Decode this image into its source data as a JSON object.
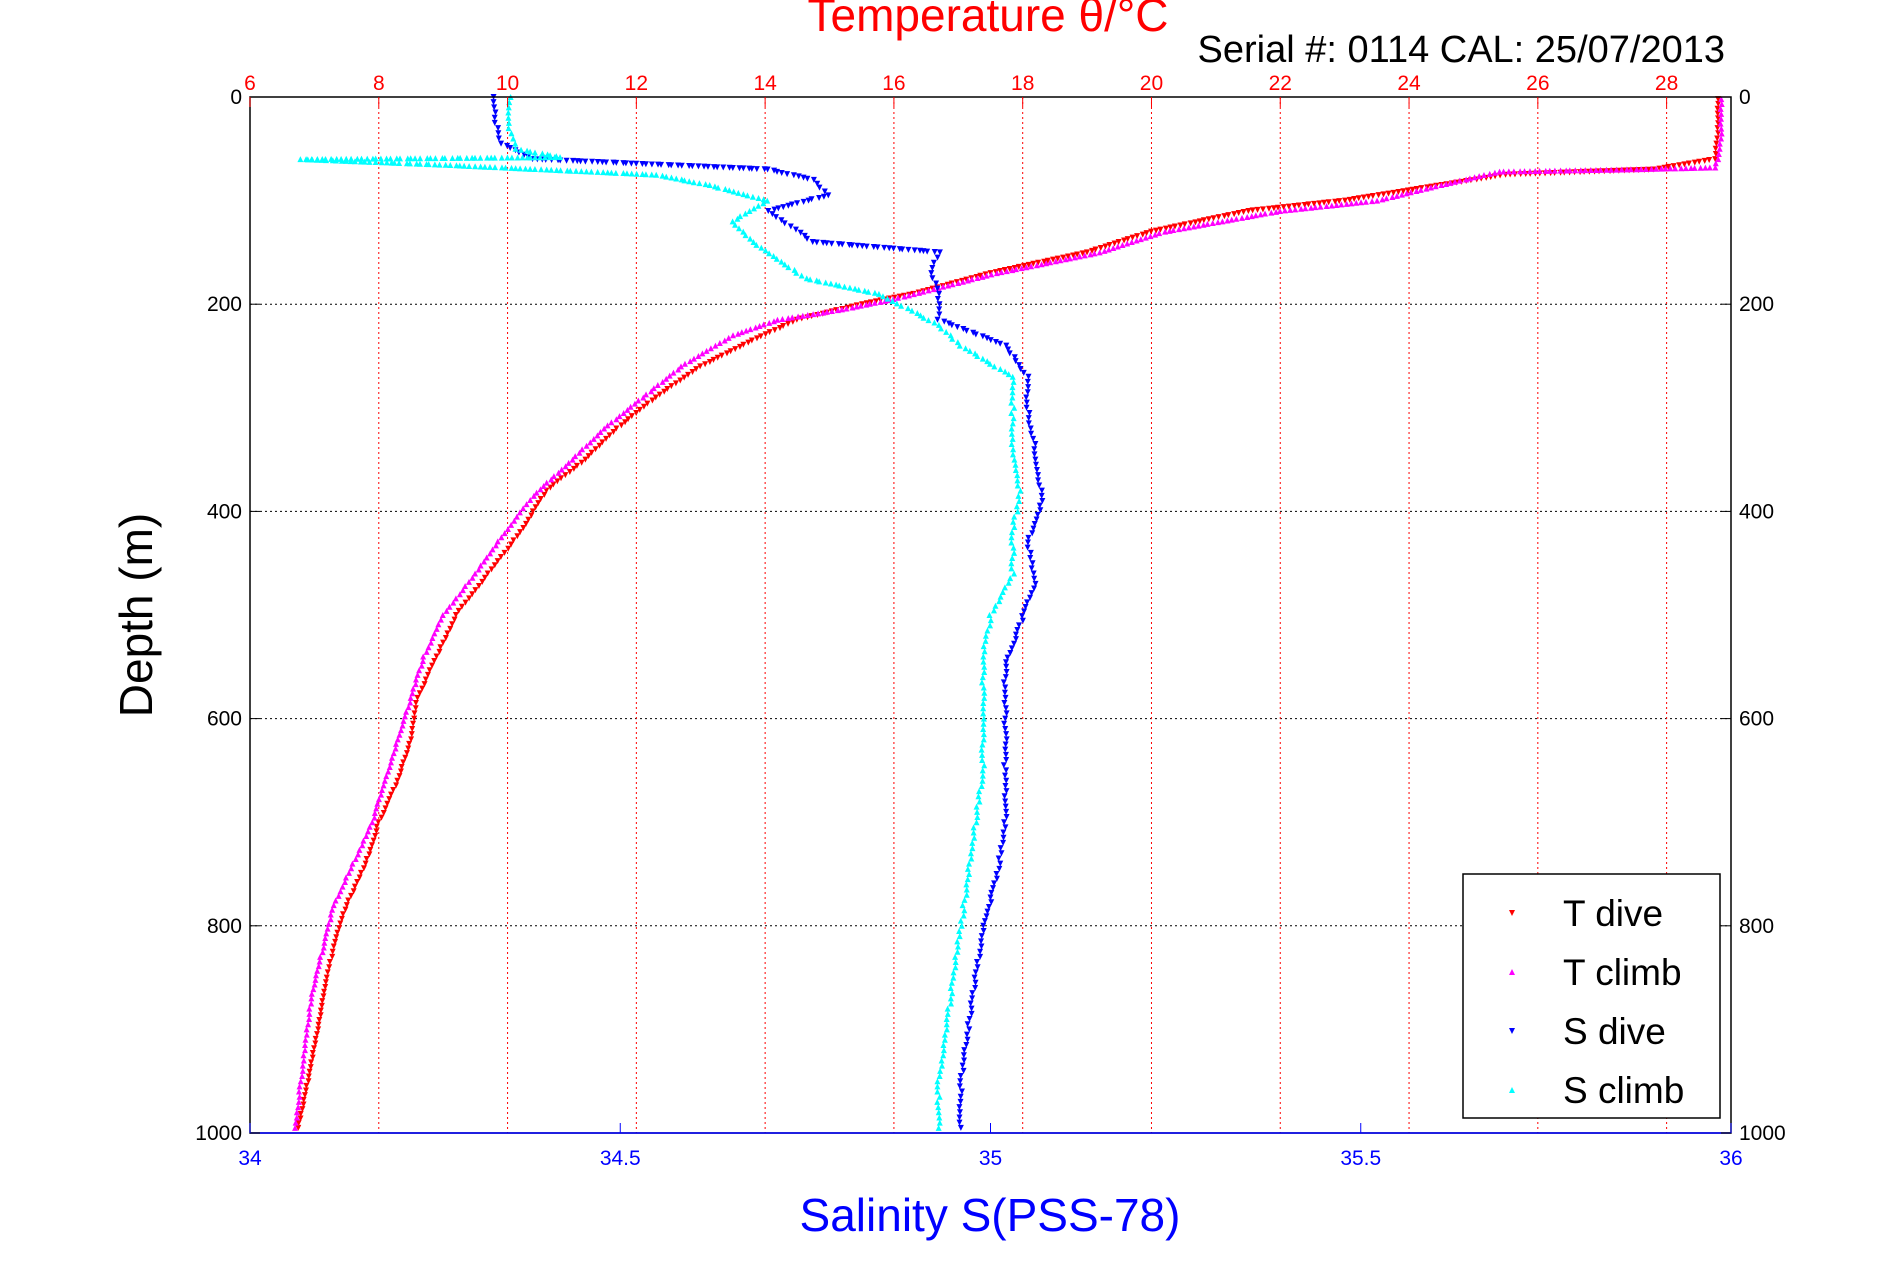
{
  "chart_data": {
    "type": "scatter",
    "title": "Temperature θ/°C",
    "subtitle": "Serial #: 0114  CAL: 25/07/2013",
    "xlabel": "Salinity S(PSS-78)",
    "ylabel": "Depth (m)",
    "x2label": "Temperature θ/°C",
    "y_reversed": true,
    "ylim": [
      0,
      1000
    ],
    "xlim": [
      34,
      36
    ],
    "x2lim": [
      6,
      29
    ],
    "y_ticks": [
      "0",
      "200",
      "400",
      "600",
      "800",
      "1000"
    ],
    "x_ticks": [
      "34",
      "34.5",
      "35",
      "35.5",
      "36"
    ],
    "x2_ticks": [
      "6",
      "8",
      "10",
      "12",
      "14",
      "16",
      "18",
      "20",
      "22",
      "24",
      "26",
      "28"
    ],
    "grid": true,
    "legend_position": "bottom-right",
    "series": [
      {
        "name": "T dive",
        "axis": "temperature",
        "color": "#ff0000",
        "marker": "triangle-down",
        "points": [
          [
            28.8,
            2
          ],
          [
            28.8,
            30
          ],
          [
            28.75,
            60
          ],
          [
            27.8,
            70
          ],
          [
            25.5,
            75
          ],
          [
            24.2,
            88
          ],
          [
            23.0,
            100
          ],
          [
            21.5,
            110
          ],
          [
            20.0,
            130
          ],
          [
            19.0,
            150
          ],
          [
            17.5,
            170
          ],
          [
            16.3,
            190
          ],
          [
            15.5,
            200
          ],
          [
            14.5,
            215
          ],
          [
            13.8,
            235
          ],
          [
            13.0,
            260
          ],
          [
            12.3,
            290
          ],
          [
            11.7,
            320
          ],
          [
            11.2,
            350
          ],
          [
            10.6,
            380
          ],
          [
            10.2,
            420
          ],
          [
            9.7,
            460
          ],
          [
            9.2,
            500
          ],
          [
            8.9,
            540
          ],
          [
            8.6,
            580
          ],
          [
            8.5,
            620
          ],
          [
            8.3,
            660
          ],
          [
            8.0,
            700
          ],
          [
            7.8,
            740
          ],
          [
            7.5,
            780
          ],
          [
            7.3,
            820
          ],
          [
            7.2,
            850
          ],
          [
            7.05,
            900
          ],
          [
            6.9,
            950
          ],
          [
            6.75,
            995
          ]
        ]
      },
      {
        "name": "T climb",
        "axis": "temperature",
        "color": "#ff00ff",
        "marker": "triangle-up",
        "points": [
          [
            28.85,
            2
          ],
          [
            28.85,
            40
          ],
          [
            28.8,
            60
          ],
          [
            28.75,
            68
          ],
          [
            27.3,
            70
          ],
          [
            25.4,
            72
          ],
          [
            24.5,
            85
          ],
          [
            23.5,
            100
          ],
          [
            22.0,
            110
          ],
          [
            20.2,
            130
          ],
          [
            19.2,
            150
          ],
          [
            17.6,
            170
          ],
          [
            16.0,
            195
          ],
          [
            15.2,
            205
          ],
          [
            14.2,
            215
          ],
          [
            13.5,
            230
          ],
          [
            12.7,
            260
          ],
          [
            12.1,
            290
          ],
          [
            11.5,
            320
          ],
          [
            11.0,
            350
          ],
          [
            10.4,
            385
          ],
          [
            9.9,
            425
          ],
          [
            9.5,
            460
          ],
          [
            9.0,
            500
          ],
          [
            8.7,
            540
          ],
          [
            8.5,
            580
          ],
          [
            8.3,
            620
          ],
          [
            8.1,
            660
          ],
          [
            7.9,
            700
          ],
          [
            7.6,
            740
          ],
          [
            7.3,
            780
          ],
          [
            7.1,
            830
          ],
          [
            6.95,
            870
          ],
          [
            6.85,
            920
          ],
          [
            6.75,
            970
          ],
          [
            6.7,
            995
          ]
        ]
      },
      {
        "name": "S dive",
        "axis": "salinity",
        "color": "#0000ff",
        "marker": "triangle-down",
        "points": [
          [
            34.33,
            0
          ],
          [
            34.33,
            20
          ],
          [
            34.34,
            45
          ],
          [
            34.38,
            60
          ],
          [
            34.7,
            70
          ],
          [
            34.76,
            80
          ],
          [
            34.78,
            95
          ],
          [
            34.7,
            110
          ],
          [
            34.73,
            125
          ],
          [
            34.76,
            140
          ],
          [
            34.93,
            150
          ],
          [
            34.92,
            170
          ],
          [
            34.93,
            190
          ],
          [
            34.93,
            215
          ],
          [
            35.02,
            240
          ],
          [
            35.05,
            270
          ],
          [
            35.05,
            300
          ],
          [
            35.06,
            340
          ],
          [
            35.07,
            390
          ],
          [
            35.05,
            430
          ],
          [
            35.06,
            470
          ],
          [
            35.04,
            510
          ],
          [
            35.02,
            550
          ],
          [
            35.02,
            600
          ],
          [
            35.02,
            650
          ],
          [
            35.02,
            700
          ],
          [
            35.01,
            750
          ],
          [
            34.99,
            800
          ],
          [
            34.98,
            850
          ],
          [
            34.97,
            900
          ],
          [
            34.96,
            950
          ],
          [
            34.96,
            995
          ]
        ]
      },
      {
        "name": "S climb",
        "axis": "salinity",
        "color": "#00ffff",
        "marker": "triangle-up",
        "points": [
          [
            34.35,
            0
          ],
          [
            34.35,
            30
          ],
          [
            34.36,
            50
          ],
          [
            34.42,
            58
          ],
          [
            34.07,
            60
          ],
          [
            34.25,
            65
          ],
          [
            34.55,
            75
          ],
          [
            34.62,
            85
          ],
          [
            34.7,
            100
          ],
          [
            34.65,
            120
          ],
          [
            34.68,
            140
          ],
          [
            34.75,
            175
          ],
          [
            34.85,
            190
          ],
          [
            34.93,
            220
          ],
          [
            34.96,
            240
          ],
          [
            35.03,
            270
          ],
          [
            35.03,
            300
          ],
          [
            35.03,
            340
          ],
          [
            35.04,
            380
          ],
          [
            35.03,
            420
          ],
          [
            35.03,
            460
          ],
          [
            35.0,
            500
          ],
          [
            34.99,
            540
          ],
          [
            34.99,
            600
          ],
          [
            34.99,
            650
          ],
          [
            34.98,
            700
          ],
          [
            34.97,
            750
          ],
          [
            34.96,
            800
          ],
          [
            34.95,
            850
          ],
          [
            34.94,
            900
          ],
          [
            34.93,
            950
          ],
          [
            34.93,
            995
          ]
        ]
      }
    ]
  }
}
